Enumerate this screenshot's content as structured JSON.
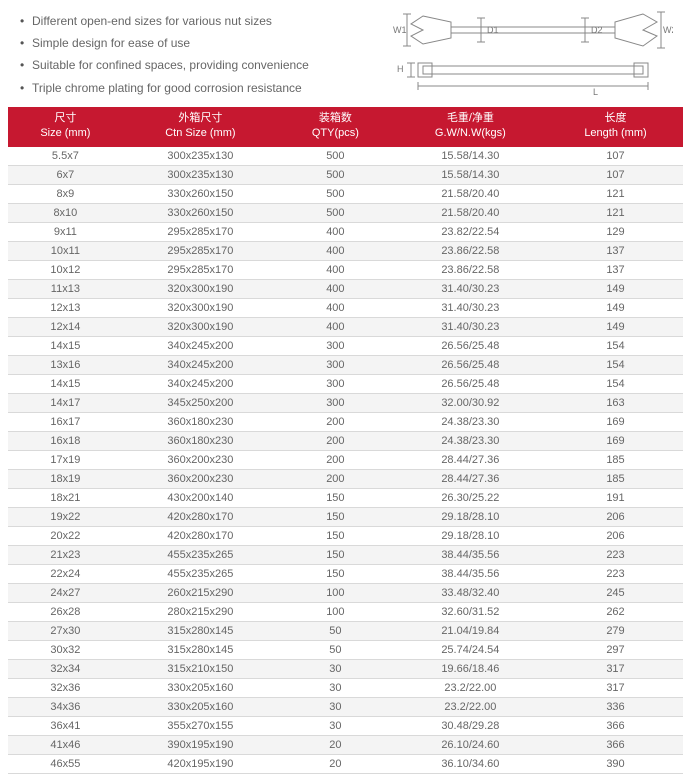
{
  "features": [
    "Different open-end sizes for various nut sizes",
    "Simple design for ease of use",
    "Suitable for confined spaces, providing convenience",
    "Triple chrome plating for good corrosion resistance"
  ],
  "diagram_labels": {
    "w1": "W1",
    "d1": "D1",
    "d2": "D2",
    "w2": "W2",
    "h": "H",
    "l": "L"
  },
  "columns": [
    {
      "cn": "尺寸",
      "en": "Size (mm)"
    },
    {
      "cn": "外箱尺寸",
      "en": "Ctn Size (mm)"
    },
    {
      "cn": "装箱数",
      "en": "QTY(pcs)"
    },
    {
      "cn": "毛重/净重",
      "en": "G.W/N.W(kgs)"
    },
    {
      "cn": "长度",
      "en": "Length (mm)"
    }
  ],
  "rows": [
    [
      "5.5x7",
      "300x235x130",
      "500",
      "15.58/14.30",
      "107"
    ],
    [
      "6x7",
      "300x235x130",
      "500",
      "15.58/14.30",
      "107"
    ],
    [
      "8x9",
      "330x260x150",
      "500",
      "21.58/20.40",
      "121"
    ],
    [
      "8x10",
      "330x260x150",
      "500",
      "21.58/20.40",
      "121"
    ],
    [
      "9x11",
      "295x285x170",
      "400",
      "23.82/22.54",
      "129"
    ],
    [
      "10x11",
      "295x285x170",
      "400",
      "23.86/22.58",
      "137"
    ],
    [
      "10x12",
      "295x285x170",
      "400",
      "23.86/22.58",
      "137"
    ],
    [
      "11x13",
      "320x300x190",
      "400",
      "31.40/30.23",
      "149"
    ],
    [
      "12x13",
      "320x300x190",
      "400",
      "31.40/30.23",
      "149"
    ],
    [
      "12x14",
      "320x300x190",
      "400",
      "31.40/30.23",
      "149"
    ],
    [
      "14x15",
      "340x245x200",
      "300",
      "26.56/25.48",
      "154"
    ],
    [
      "13x16",
      "340x245x200",
      "300",
      "26.56/25.48",
      "154"
    ],
    [
      "14x15",
      "340x245x200",
      "300",
      "26.56/25.48",
      "154"
    ],
    [
      "14x17",
      "345x250x200",
      "300",
      "32.00/30.92",
      "163"
    ],
    [
      "16x17",
      "360x180x230",
      "200",
      "24.38/23.30",
      "169"
    ],
    [
      "16x18",
      "360x180x230",
      "200",
      "24.38/23.30",
      "169"
    ],
    [
      "17x19",
      "360x200x230",
      "200",
      "28.44/27.36",
      "185"
    ],
    [
      "18x19",
      "360x200x230",
      "200",
      "28.44/27.36",
      "185"
    ],
    [
      "18x21",
      "430x200x140",
      "150",
      "26.30/25.22",
      "191"
    ],
    [
      "19x22",
      "420x280x170",
      "150",
      "29.18/28.10",
      "206"
    ],
    [
      "20x22",
      "420x280x170",
      "150",
      "29.18/28.10",
      "206"
    ],
    [
      "21x23",
      "455x235x265",
      "150",
      "38.44/35.56",
      "223"
    ],
    [
      "22x24",
      "455x235x265",
      "150",
      "38.44/35.56",
      "223"
    ],
    [
      "24x27",
      "260x215x290",
      "100",
      "33.48/32.40",
      "245"
    ],
    [
      "26x28",
      "280x215x290",
      "100",
      "32.60/31.52",
      "262"
    ],
    [
      "27x30",
      "315x280x145",
      "50",
      "21.04/19.84",
      "279"
    ],
    [
      "30x32",
      "315x280x145",
      "50",
      "25.74/24.54",
      "297"
    ],
    [
      "32x34",
      "315x210x150",
      "30",
      "19.66/18.46",
      "317"
    ],
    [
      "32x36",
      "330x205x160",
      "30",
      "23.2/22.00",
      "317"
    ],
    [
      "34x36",
      "330x205x160",
      "30",
      "23.2/22.00",
      "336"
    ],
    [
      "36x41",
      "355x270x155",
      "30",
      "30.48/29.28",
      "366"
    ],
    [
      "41x46",
      "390x195x190",
      "20",
      "26.10/24.60",
      "366"
    ],
    [
      "46x55",
      "420x195x190",
      "20",
      "36.10/34.60",
      "390"
    ]
  ],
  "colors": {
    "header_bg": "#c61830",
    "header_fg": "#ffffff",
    "row_alt": "#f4f4f4",
    "border": "#d9d9d9",
    "text": "#666666"
  }
}
